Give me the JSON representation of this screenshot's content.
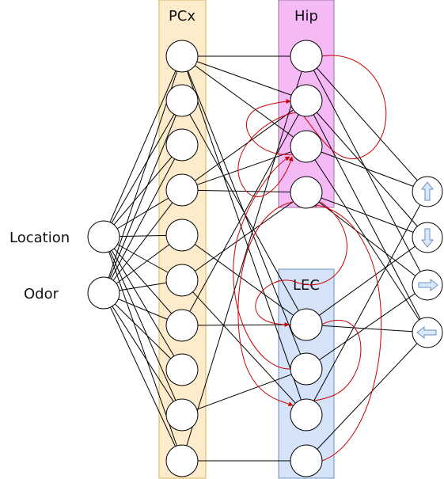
{
  "regions": {
    "pcx": {
      "label": "PCx",
      "fill": "#fdeccc",
      "stroke": "#d6b656"
    },
    "hip": {
      "label": "Hip",
      "fill": "#f5b9f5",
      "stroke": "#9673a6"
    },
    "lec": {
      "label": "LEC",
      "fill": "#d5e3f8",
      "stroke": "#6c8ebf"
    }
  },
  "inputs": [
    "Location",
    "Odor"
  ],
  "actions": [
    {
      "icon": "arrow-up-icon"
    },
    {
      "icon": "arrow-down-icon"
    },
    {
      "icon": "arrow-right-icon"
    },
    {
      "icon": "arrow-left-icon"
    }
  ],
  "colors": {
    "node_stroke": "#000000",
    "edge": "#000000",
    "recurrent_edge": "#cc0000",
    "arrow_fill": "#dae8fc",
    "arrow_stroke": "#6c8ebf"
  }
}
